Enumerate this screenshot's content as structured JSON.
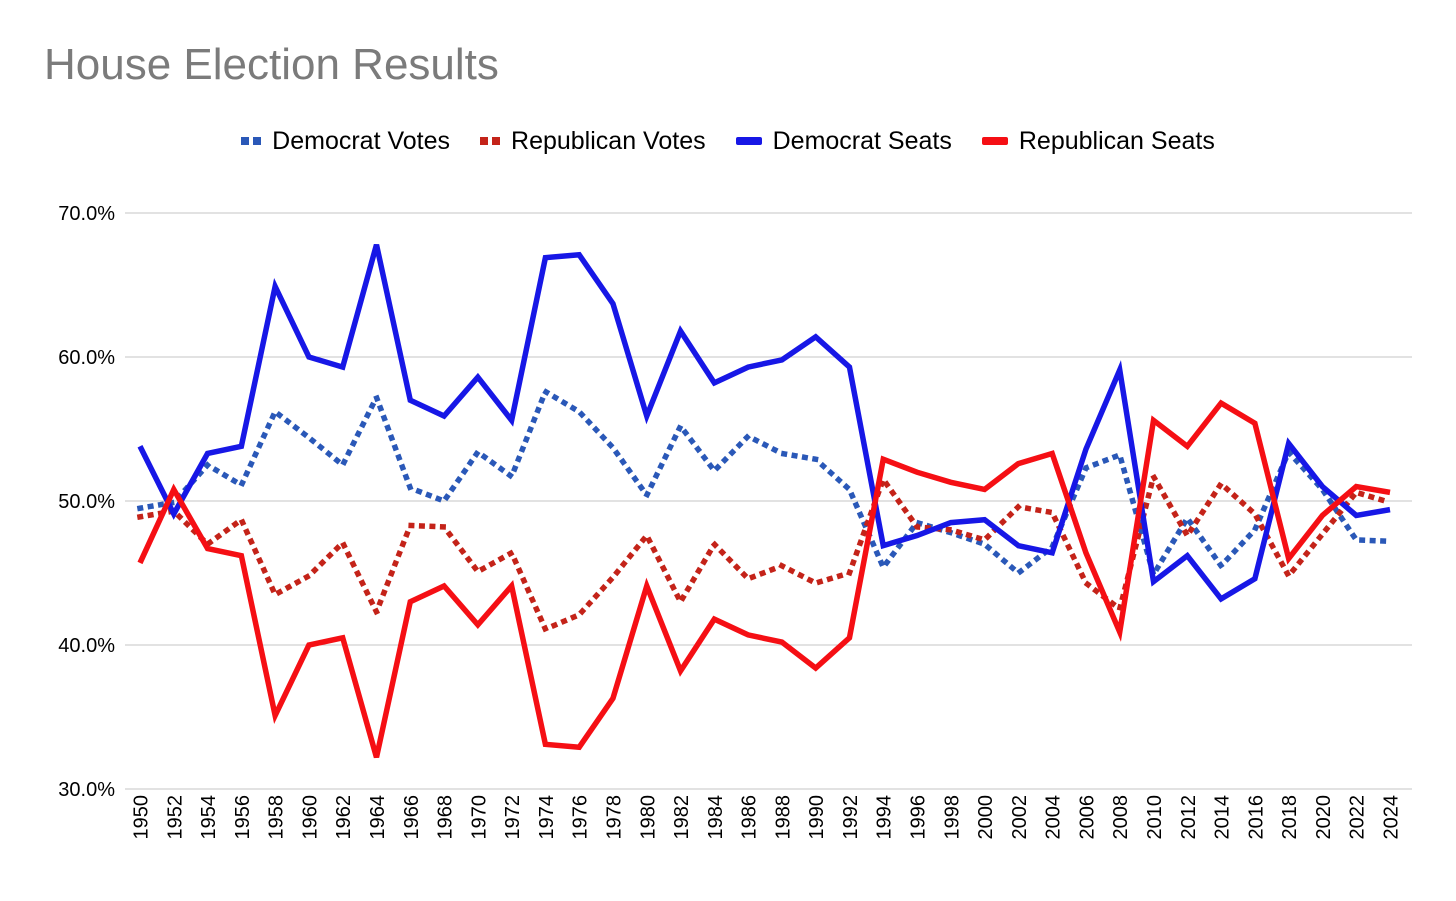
{
  "title": "House Election Results",
  "axes": {
    "y_tick_labels": [
      "70.0%",
      "60.0%",
      "50.0%",
      "40.0%",
      "30.0%"
    ],
    "y_tick_values": [
      70,
      60,
      50,
      40,
      30
    ]
  },
  "chart_data": {
    "type": "line",
    "title": "House Election Results",
    "xlabel": "",
    "ylabel": "",
    "ylim": [
      30,
      70
    ],
    "grid": true,
    "legend_position": "top",
    "y_ticks": [
      "70.0%",
      "60.0%",
      "50.0%",
      "40.0%",
      "30.0%"
    ],
    "y_tick_values": [
      70,
      60,
      50,
      40,
      30
    ],
    "x": [
      1950,
      1952,
      1954,
      1956,
      1958,
      1960,
      1962,
      1964,
      1966,
      1968,
      1970,
      1972,
      1974,
      1976,
      1978,
      1980,
      1982,
      1984,
      1986,
      1988,
      1990,
      1992,
      1994,
      1996,
      1998,
      2000,
      2002,
      2004,
      2006,
      2008,
      2010,
      2012,
      2014,
      2016,
      2018,
      2020,
      2022,
      2024
    ],
    "series": [
      {
        "name": "Democrat Votes",
        "style": "dotted",
        "color": "#2a58b8",
        "values": [
          49.5,
          49.9,
          52.5,
          51.1,
          56.2,
          54.4,
          52.5,
          57.2,
          50.9,
          50.0,
          53.4,
          51.7,
          57.6,
          56.2,
          53.7,
          50.4,
          55.2,
          52.1,
          54.5,
          53.3,
          52.9,
          50.8,
          45.4,
          48.5,
          47.8,
          47.0,
          45.0,
          46.8,
          52.3,
          53.2,
          44.9,
          48.8,
          45.5,
          48.0,
          53.4,
          50.8,
          47.3,
          47.2
        ]
      },
      {
        "name": "Republican Votes",
        "style": "dotted",
        "color": "#c42319",
        "values": [
          48.9,
          49.3,
          47.0,
          48.7,
          43.5,
          44.8,
          47.1,
          42.3,
          48.3,
          48.2,
          45.1,
          46.4,
          41.1,
          42.1,
          44.7,
          47.6,
          43.0,
          47.0,
          44.6,
          45.5,
          44.3,
          45.0,
          51.5,
          48.2,
          48.0,
          47.3,
          49.6,
          49.2,
          44.3,
          42.5,
          51.7,
          47.6,
          51.2,
          49.1,
          44.8,
          47.7,
          50.6,
          49.9
        ]
      },
      {
        "name": "Democrat Seats",
        "style": "solid",
        "color": "#1717e6",
        "values": [
          53.8,
          49.1,
          53.3,
          53.8,
          64.9,
          60.0,
          59.3,
          67.8,
          57.0,
          55.9,
          58.6,
          55.6,
          66.9,
          67.1,
          63.7,
          55.9,
          61.8,
          58.2,
          59.3,
          59.8,
          61.4,
          59.3,
          46.9,
          47.6,
          48.5,
          48.7,
          46.9,
          46.4,
          53.6,
          59.1,
          44.4,
          46.2,
          43.2,
          44.6,
          54.0,
          51.0,
          49.0,
          49.4
        ]
      },
      {
        "name": "Republican Seats",
        "style": "solid",
        "color": "#f50f14",
        "values": [
          45.7,
          50.8,
          46.7,
          46.2,
          35.1,
          40.0,
          40.5,
          32.2,
          43.0,
          44.1,
          41.4,
          44.1,
          33.1,
          32.9,
          36.3,
          44.1,
          38.2,
          41.8,
          40.7,
          40.2,
          38.4,
          40.5,
          52.9,
          52.0,
          51.3,
          50.8,
          52.6,
          53.3,
          46.4,
          40.9,
          55.6,
          53.8,
          56.8,
          55.4,
          46.0,
          49.0,
          51.0,
          50.6
        ]
      }
    ]
  }
}
